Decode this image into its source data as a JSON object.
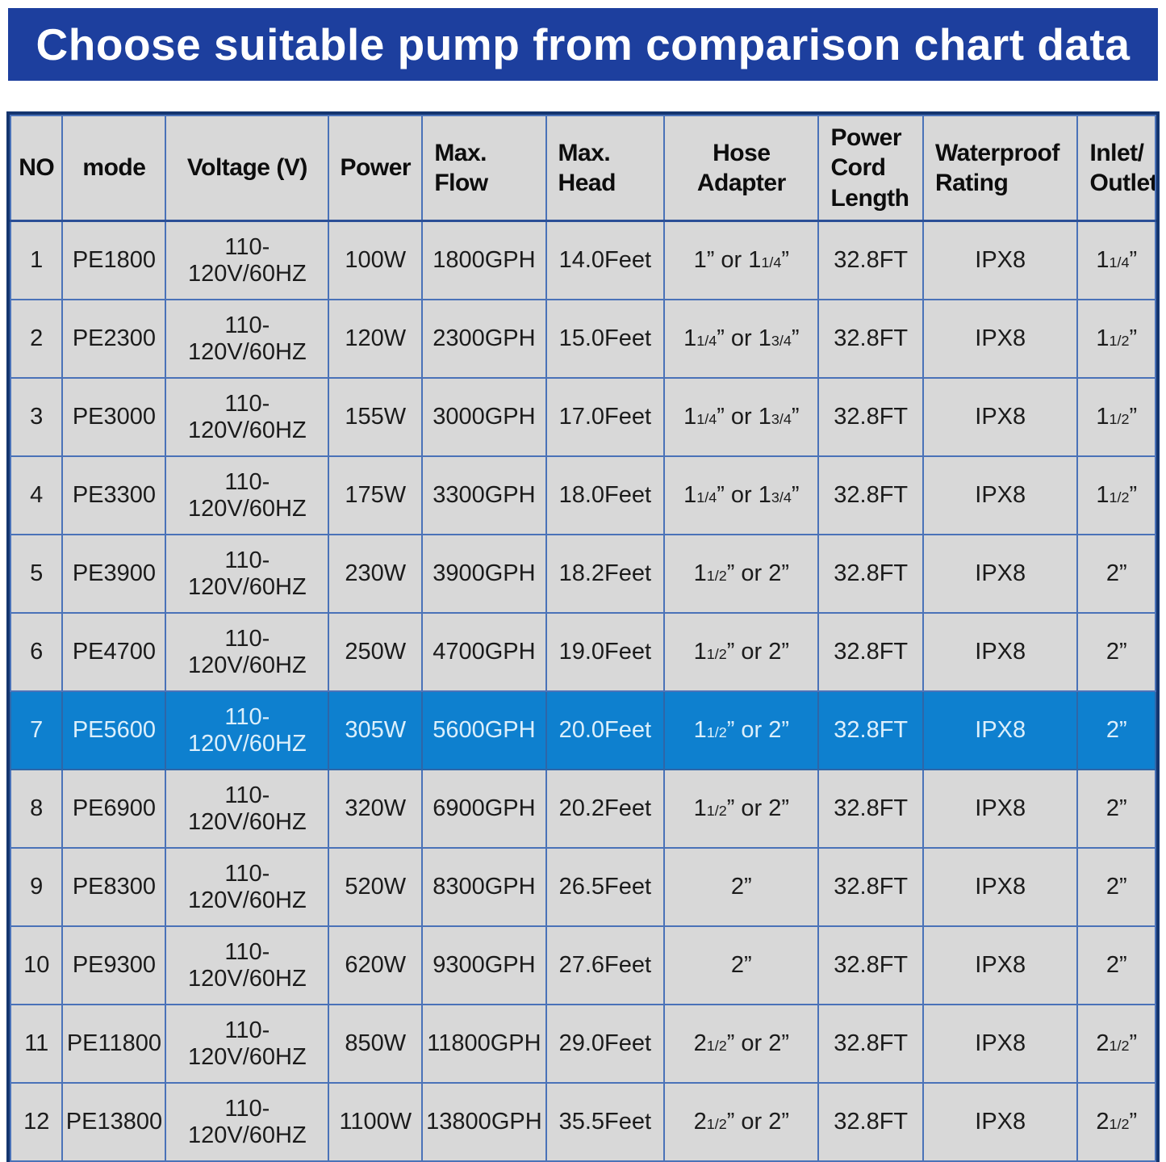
{
  "banner": {
    "title": "Choose suitable pump from comparison chart data"
  },
  "colors": {
    "banner_bg": "#1d3f9e",
    "banner_text": "#ffffff",
    "cell_bg": "#d8d8d8",
    "inner_border": "#4a72b8",
    "outer_border": "#14356f",
    "highlight_row_bg": "#0e80cf",
    "highlight_row_text": "#dceffb",
    "body_text": "#1b1b1b"
  },
  "chart_data": {
    "type": "table",
    "title": "Choose suitable pump from comparison chart data",
    "highlighted_row_no": "7",
    "columns": [
      {
        "key": "no",
        "label": "NO",
        "align": "center"
      },
      {
        "key": "mode",
        "label": "mode",
        "align": "center"
      },
      {
        "key": "voltage",
        "label": "Voltage (V)",
        "align": "center"
      },
      {
        "key": "power",
        "label": "Power",
        "align": "center"
      },
      {
        "key": "max_flow",
        "label": "Max.\nFlow",
        "align": "left"
      },
      {
        "key": "max_head",
        "label": "Max.\nHead",
        "align": "left"
      },
      {
        "key": "hose_adapter",
        "label": "Hose Adapter",
        "align": "center"
      },
      {
        "key": "power_cord_length",
        "label": "Power\nCord\nLength",
        "align": "left"
      },
      {
        "key": "waterproof_rating",
        "label": "Waterproof\nRating",
        "align": "left"
      },
      {
        "key": "inlet_outlet",
        "label": "Inlet/\nOutlet",
        "align": "left"
      }
    ],
    "rows": [
      {
        "no": "1",
        "mode": "PE1800",
        "voltage": "110-120V/60HZ",
        "power": "100W",
        "max_flow": "1800GPH",
        "max_head": "14.0Feet",
        "hose_adapter": "1” or 1{1/4}”",
        "power_cord_length": "32.8FT",
        "waterproof_rating": "IPX8",
        "inlet_outlet": "1{1/4}”"
      },
      {
        "no": "2",
        "mode": "PE2300",
        "voltage": "110-120V/60HZ",
        "power": "120W",
        "max_flow": "2300GPH",
        "max_head": "15.0Feet",
        "hose_adapter": "1{1/4}” or 1{3/4}”",
        "power_cord_length": "32.8FT",
        "waterproof_rating": "IPX8",
        "inlet_outlet": "1{1/2}”"
      },
      {
        "no": "3",
        "mode": "PE3000",
        "voltage": "110-120V/60HZ",
        "power": "155W",
        "max_flow": "3000GPH",
        "max_head": "17.0Feet",
        "hose_adapter": "1{1/4}” or 1{3/4}”",
        "power_cord_length": "32.8FT",
        "waterproof_rating": "IPX8",
        "inlet_outlet": "1{1/2}”"
      },
      {
        "no": "4",
        "mode": "PE3300",
        "voltage": "110-120V/60HZ",
        "power": "175W",
        "max_flow": "3300GPH",
        "max_head": "18.0Feet",
        "hose_adapter": "1{1/4}” or 1{3/4}”",
        "power_cord_length": "32.8FT",
        "waterproof_rating": "IPX8",
        "inlet_outlet": "1{1/2}”"
      },
      {
        "no": "5",
        "mode": "PE3900",
        "voltage": "110-120V/60HZ",
        "power": "230W",
        "max_flow": "3900GPH",
        "max_head": "18.2Feet",
        "hose_adapter": "1{1/2}” or 2”",
        "power_cord_length": "32.8FT",
        "waterproof_rating": "IPX8",
        "inlet_outlet": "2”"
      },
      {
        "no": "6",
        "mode": "PE4700",
        "voltage": "110-120V/60HZ",
        "power": "250W",
        "max_flow": "4700GPH",
        "max_head": "19.0Feet",
        "hose_adapter": "1{1/2}” or 2”",
        "power_cord_length": "32.8FT",
        "waterproof_rating": "IPX8",
        "inlet_outlet": "2”"
      },
      {
        "no": "7",
        "mode": "PE5600",
        "voltage": "110-120V/60HZ",
        "power": "305W",
        "max_flow": "5600GPH",
        "max_head": "20.0Feet",
        "hose_adapter": "1{1/2}” or 2”",
        "power_cord_length": "32.8FT",
        "waterproof_rating": "IPX8",
        "inlet_outlet": "2”"
      },
      {
        "no": "8",
        "mode": "PE6900",
        "voltage": "110-120V/60HZ",
        "power": "320W",
        "max_flow": "6900GPH",
        "max_head": "20.2Feet",
        "hose_adapter": "1{1/2}” or 2”",
        "power_cord_length": "32.8FT",
        "waterproof_rating": "IPX8",
        "inlet_outlet": "2”"
      },
      {
        "no": "9",
        "mode": "PE8300",
        "voltage": "110-120V/60HZ",
        "power": "520W",
        "max_flow": "8300GPH",
        "max_head": "26.5Feet",
        "hose_adapter": "2”",
        "power_cord_length": "32.8FT",
        "waterproof_rating": "IPX8",
        "inlet_outlet": "2”"
      },
      {
        "no": "10",
        "mode": "PE9300",
        "voltage": "110-120V/60HZ",
        "power": "620W",
        "max_flow": "9300GPH",
        "max_head": "27.6Feet",
        "hose_adapter": "2”",
        "power_cord_length": "32.8FT",
        "waterproof_rating": "IPX8",
        "inlet_outlet": "2”"
      },
      {
        "no": "11",
        "mode": "PE11800",
        "voltage": "110-120V/60HZ",
        "power": "850W",
        "max_flow": "11800GPH",
        "max_head": "29.0Feet",
        "hose_adapter": "2{1/2}” or 2”",
        "power_cord_length": "32.8FT",
        "waterproof_rating": "IPX8",
        "inlet_outlet": "2{1/2}”"
      },
      {
        "no": "12",
        "mode": "PE13800",
        "voltage": "110-120V/60HZ",
        "power": "1100W",
        "max_flow": "13800GPH",
        "max_head": "35.5Feet",
        "hose_adapter": "2{1/2}” or 2”",
        "power_cord_length": "32.8FT",
        "waterproof_rating": "IPX8",
        "inlet_outlet": "2{1/2}”"
      }
    ]
  }
}
